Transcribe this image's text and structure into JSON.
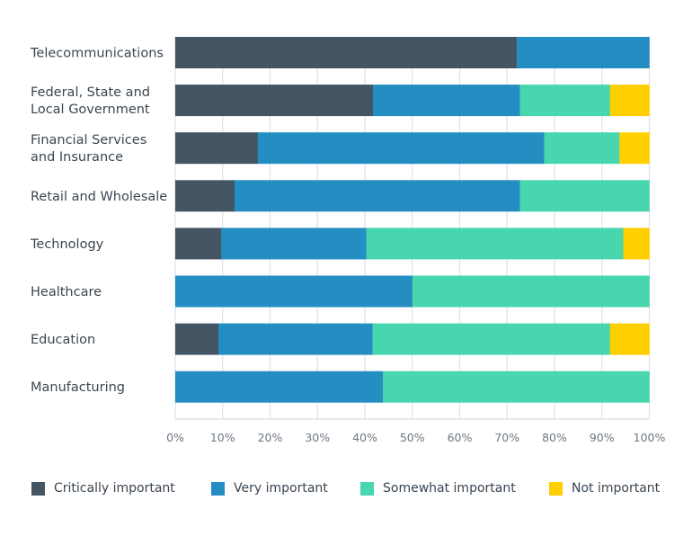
{
  "chart_data": {
    "type": "bar",
    "orientation": "horizontal",
    "stacked": true,
    "title": "",
    "xlabel": "",
    "ylabel": "",
    "xlim": [
      0,
      100
    ],
    "x_ticks": [
      "0%",
      "10%",
      "20%",
      "30%",
      "40%",
      "50%",
      "60%",
      "70%",
      "80%",
      "90%",
      "100%"
    ],
    "grid": true,
    "legend_position": "bottom",
    "categories": [
      [
        "Telecommunications"
      ],
      [
        "Federal, State and",
        "Local Government"
      ],
      [
        "Financial Services",
        "and Insurance"
      ],
      [
        "Retail and Wholesale"
      ],
      [
        "Technology"
      ],
      [
        "Healthcare"
      ],
      [
        "Education"
      ],
      [
        "Manufacturing"
      ]
    ],
    "series": [
      {
        "name": "Critically important",
        "color": "#435563",
        "values": [
          72,
          41.7,
          17.4,
          12.5,
          9.7,
          0,
          9.1,
          0
        ]
      },
      {
        "name": "Very important",
        "color": "#248dc1",
        "values": [
          28,
          31.0,
          60.4,
          60.2,
          30.6,
          50,
          32.5,
          43.8
        ]
      },
      {
        "name": "Somewhat important",
        "color": "#47d6ae",
        "values": [
          0,
          19.0,
          15.9,
          27.3,
          54.2,
          50,
          50.1,
          56.2
        ]
      },
      {
        "name": "Not important",
        "color": "#ffcf00",
        "values": [
          0,
          8.3,
          6.3,
          0,
          5.5,
          0,
          8.3,
          0
        ]
      }
    ]
  }
}
